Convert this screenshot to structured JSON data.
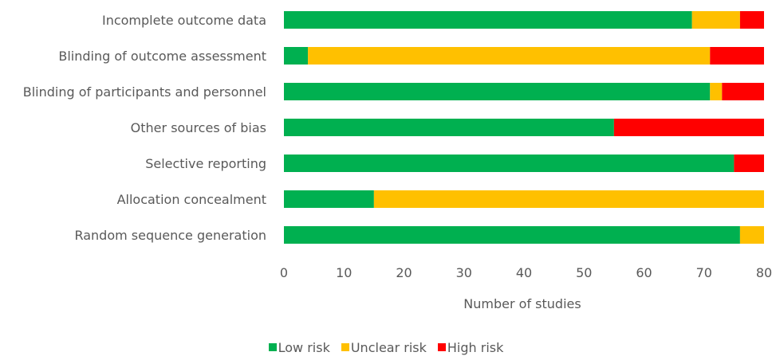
{
  "chart_data": {
    "type": "bar",
    "orientation": "horizontal",
    "stacked": true,
    "categories": [
      "Incomplete outcome data",
      "Blinding of outcome assessment",
      "Blinding of participants and personnel",
      "Other sources of bias",
      "Selective reporting",
      "Allocation concealment",
      "Random sequence generation"
    ],
    "series": [
      {
        "name": "Low risk",
        "color": "#00b050",
        "values": [
          68,
          4,
          71,
          55,
          75,
          15,
          76
        ]
      },
      {
        "name": "Unclear risk",
        "color": "#ffc000",
        "values": [
          8,
          67,
          2,
          0,
          0,
          65,
          4
        ]
      },
      {
        "name": "High risk",
        "color": "#ff0000",
        "values": [
          4,
          9,
          7,
          25,
          5,
          0,
          0
        ]
      }
    ],
    "xlabel": "Number of studies",
    "xlim": [
      0,
      80
    ],
    "xticks": [
      0,
      10,
      20,
      30,
      40,
      50,
      60,
      70,
      80
    ],
    "legend_position": "bottom",
    "grid": false
  }
}
